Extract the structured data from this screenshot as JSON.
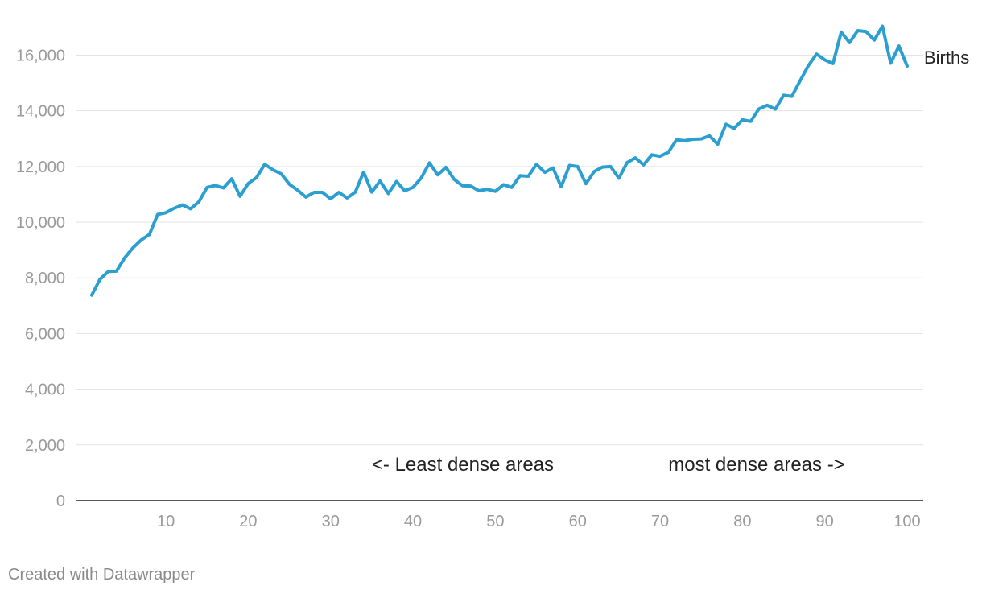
{
  "chart_data": {
    "type": "line",
    "series": [
      {
        "name": "Births",
        "color": "#2a9fd0",
        "x": [
          1,
          2,
          3,
          4,
          5,
          6,
          7,
          8,
          9,
          10,
          11,
          12,
          13,
          14,
          15,
          16,
          17,
          18,
          19,
          20,
          21,
          22,
          23,
          24,
          25,
          26,
          27,
          28,
          29,
          30,
          31,
          32,
          33,
          34,
          35,
          36,
          37,
          38,
          39,
          40,
          41,
          42,
          43,
          44,
          45,
          46,
          47,
          48,
          49,
          50,
          51,
          52,
          53,
          54,
          55,
          56,
          57,
          58,
          59,
          60,
          61,
          62,
          63,
          64,
          65,
          66,
          67,
          68,
          69,
          70,
          71,
          72,
          73,
          74,
          75,
          76,
          77,
          78,
          79,
          80,
          81,
          82,
          83,
          84,
          85,
          86,
          87,
          88,
          89,
          90,
          91,
          92,
          93,
          94,
          95,
          96,
          97,
          98,
          99,
          100
        ],
        "values": [
          7380,
          7950,
          8230,
          8240,
          8720,
          9080,
          9360,
          9560,
          10280,
          10340,
          10500,
          10620,
          10480,
          10730,
          11250,
          11320,
          11230,
          11560,
          10930,
          11390,
          11600,
          12080,
          11880,
          11740,
          11360,
          11150,
          10900,
          11070,
          11070,
          10840,
          11070,
          10870,
          11080,
          11800,
          11080,
          11480,
          11030,
          11460,
          11130,
          11250,
          11590,
          12130,
          11700,
          11970,
          11540,
          11310,
          11300,
          11130,
          11180,
          11110,
          11350,
          11250,
          11670,
          11650,
          12080,
          11790,
          11950,
          11270,
          12040,
          12000,
          11380,
          11820,
          11980,
          12000,
          11580,
          12140,
          12310,
          12060,
          12420,
          12370,
          12510,
          12960,
          12930,
          12980,
          12990,
          13100,
          12800,
          13520,
          13370,
          13680,
          13620,
          14070,
          14200,
          14060,
          14560,
          14520,
          15080,
          15620,
          16040,
          15830,
          15700,
          16830,
          16450,
          16880,
          16850,
          16540,
          17040,
          15710,
          16330,
          15610
        ]
      }
    ],
    "ylim": [
      0,
      17500
    ],
    "xlim": [
      0,
      100
    ],
    "y_ticks": [
      {
        "value": 0,
        "label": "0"
      },
      {
        "value": 2000,
        "label": "2,000"
      },
      {
        "value": 4000,
        "label": "4,000"
      },
      {
        "value": 6000,
        "label": "6,000"
      },
      {
        "value": 8000,
        "label": "8,000"
      },
      {
        "value": 10000,
        "label": "10,000"
      },
      {
        "value": 12000,
        "label": "12,000"
      },
      {
        "value": 14000,
        "label": "14,000"
      },
      {
        "value": 16000,
        "label": "16,000"
      }
    ],
    "x_ticks": [
      {
        "value": 10,
        "label": "10"
      },
      {
        "value": 20,
        "label": "20"
      },
      {
        "value": 30,
        "label": "30"
      },
      {
        "value": 40,
        "label": "40"
      },
      {
        "value": 50,
        "label": "50"
      },
      {
        "value": 60,
        "label": "60"
      },
      {
        "value": 70,
        "label": "70"
      },
      {
        "value": 80,
        "label": "80"
      },
      {
        "value": 90,
        "label": "90"
      },
      {
        "value": 100,
        "label": "100"
      }
    ],
    "grid": true,
    "annotations": [
      {
        "text": "<- Least dense areas",
        "x": 35,
        "y": 1070
      },
      {
        "text": "most dense areas ->",
        "x": 71,
        "y": 1070
      }
    ]
  },
  "credit": "Created with Datawrapper"
}
